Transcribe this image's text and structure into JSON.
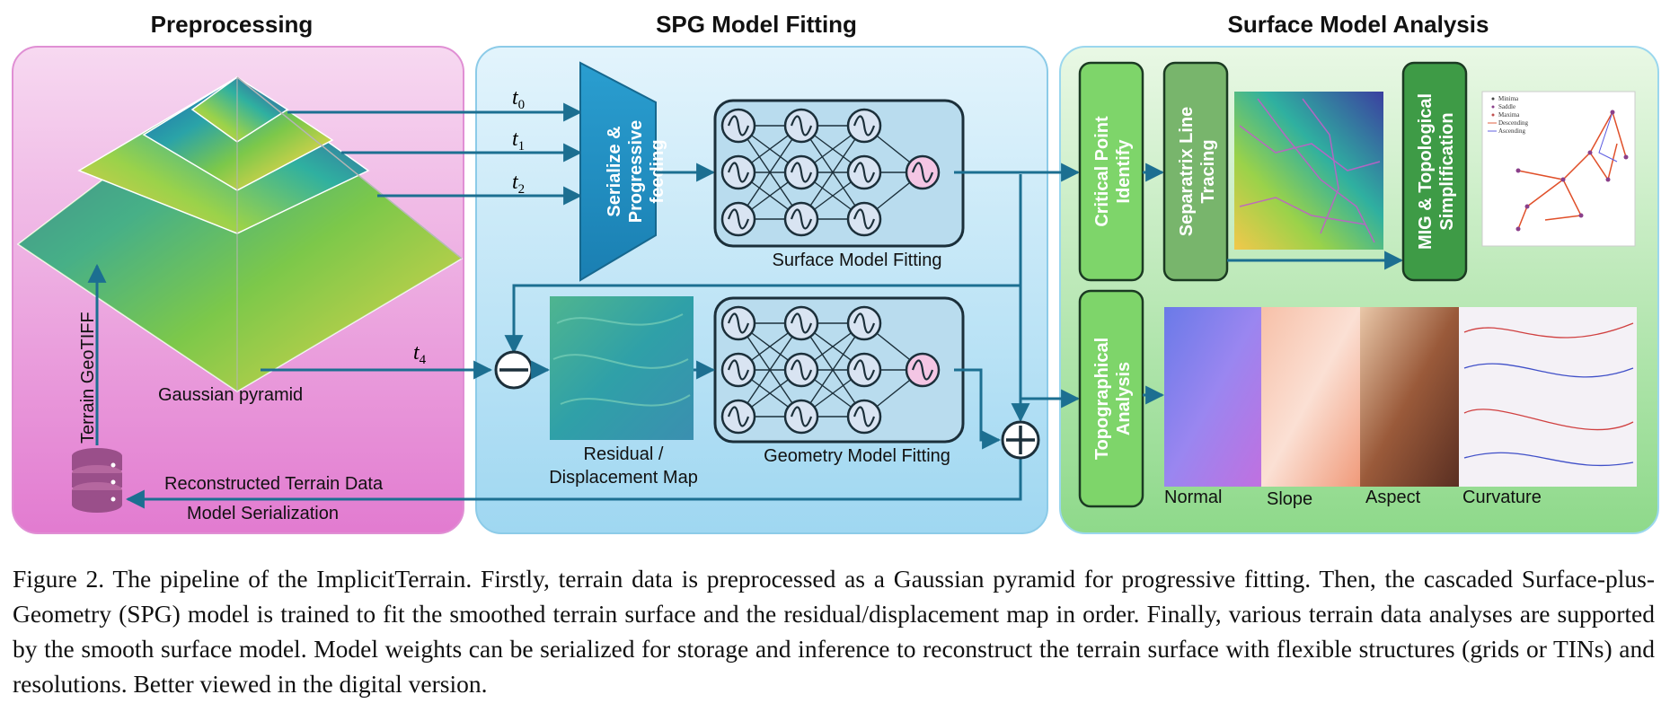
{
  "sections": {
    "preprocessing": "Preprocessing",
    "spg": "SPG Model Fitting",
    "analysis": "Surface Model Analysis"
  },
  "preprocessing": {
    "pyramid_label": "Gaussian pyramid",
    "db_label": "Terrain GeoTIFF",
    "reconstructed": "Reconstructed Terrain Data",
    "serialization": "Model Serialization"
  },
  "spg": {
    "serialize_line1": "Serialize &",
    "serialize_line2": "Progressive",
    "serialize_line3": "feeding",
    "surface_fitting": "Surface Model Fitting",
    "geometry_fitting": "Geometry Model Fitting",
    "residual_line1": "Residual /",
    "residual_line2": "Displacement Map",
    "t0": "t",
    "t0_sub": "0",
    "t1": "t",
    "t1_sub": "1",
    "t2": "t",
    "t2_sub": "2",
    "t4": "t",
    "t4_sub": "4"
  },
  "analysis": {
    "critical_line1": "Critical Point",
    "critical_line2": "Identify",
    "separatrix_line1": "Separatrix Line",
    "separatrix_line2": "Tracing",
    "mig_line1": "MIG & Topological",
    "mig_line2": "Simplification",
    "topo_line1": "Topographical",
    "topo_line2": "Analysis",
    "maps": [
      "Normal",
      "Slope",
      "Aspect",
      "Curvature"
    ],
    "legend": [
      "Minima",
      "Saddle",
      "Maxima",
      "Descending",
      "Ascending"
    ]
  },
  "caption": "Figure 2. The pipeline of the ImplicitTerrain. Firstly, terrain data is preprocessed as a Gaussian pyramid for progressive fitting. Then, the cascaded Surface-plus-Geometry (SPG) model is trained to fit the smoothed terrain surface and the residual/displacement map in order. Finally, various terrain data analyses are supported by the smooth surface model. Model weights can be serialized for storage and inference to reconstruct the terrain surface with flexible structures (grids or TINs) and resolutions. Better viewed in the digital version."
}
